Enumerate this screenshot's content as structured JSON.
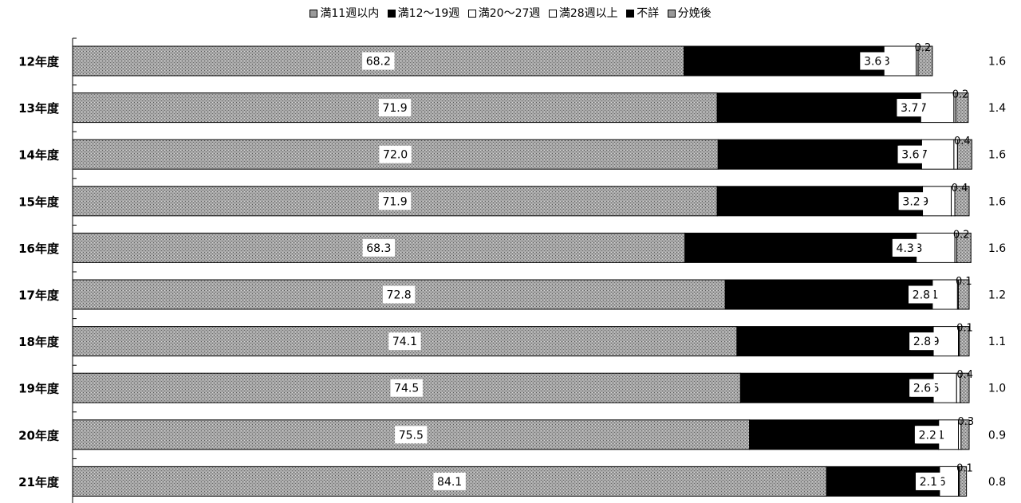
{
  "chart_data": {
    "type": "bar",
    "orientation": "horizontal",
    "stacked": true,
    "percent_stacked": true,
    "categories": [
      "12年度",
      "13年度",
      "14年度",
      "15年度",
      "16年度",
      "17年度",
      "18年度",
      "19年度",
      "20年度",
      "21年度"
    ],
    "series": [
      {
        "name": "満11週以内",
        "color": "#9a9a9a",
        "pattern": "dotted-gray",
        "values": [
          68.2,
          71.9,
          72.0,
          71.9,
          68.3,
          72.8,
          74.1,
          74.5,
          75.5,
          84.1
        ]
      },
      {
        "name": "満12～19週",
        "color": "#000000",
        "pattern": "solid-black",
        "values": [
          22.3,
          22.7,
          22.7,
          22.9,
          25.8,
          23.1,
          21.9,
          21.5,
          21.1,
          12.6
        ]
      },
      {
        "name": "満20～27週",
        "color": "#ffffff",
        "pattern": "white",
        "values": [
          3.6,
          3.7,
          3.6,
          3.2,
          4.3,
          2.8,
          2.8,
          2.6,
          2.2,
          2.1
        ]
      },
      {
        "name": "満28週以上",
        "color": "#ffffff",
        "pattern": "white",
        "values": [
          0.2,
          0.2,
          0.4,
          0.4,
          0.2,
          0.1,
          0.1,
          0.4,
          0.3,
          0.1
        ]
      },
      {
        "name": "不詳",
        "color": "#000000",
        "pattern": "solid-black",
        "values": [
          0.0,
          0.0,
          0.0,
          0.0,
          0.0,
          0.0,
          0.0,
          0.0,
          0.0,
          0.0
        ]
      },
      {
        "name": "分娩後",
        "color": "#9a9a9a",
        "pattern": "dotted-gray",
        "values": [
          1.6,
          1.4,
          1.6,
          1.6,
          1.6,
          1.2,
          1.1,
          1.0,
          0.9,
          0.8
        ]
      }
    ],
    "data_labels": {
      "s0": [
        "68.2",
        "71.9",
        "72.0",
        "71.9",
        "68.3",
        "72.8",
        "74.1",
        "74.5",
        "75.5",
        "84.1"
      ],
      "s1": [
        "22.3",
        "22.7",
        "22.7",
        "22.9",
        "25.8",
        "23.1",
        "21.9",
        "21.5",
        "21.1",
        "12.6"
      ],
      "s2": [
        "3.6",
        "3.7",
        "3.6",
        "3.2",
        "4.3",
        "2.8",
        "2.8",
        "2.6",
        "2.2",
        "2.1"
      ],
      "s3": [
        "0.2",
        "0.2",
        "0.4",
        "0.4",
        "0.2",
        "0.1",
        "0.1",
        "0.4",
        "0.3",
        "0.1"
      ],
      "s5": [
        "1.6",
        "1.4",
        "1.6",
        "1.6",
        "1.6",
        "1.2",
        "1.1",
        "1.0",
        "0.9",
        "0.8"
      ]
    },
    "xlim": [
      0,
      100
    ],
    "legend_position": "top",
    "title": "",
    "xlabel": "",
    "ylabel": ""
  }
}
